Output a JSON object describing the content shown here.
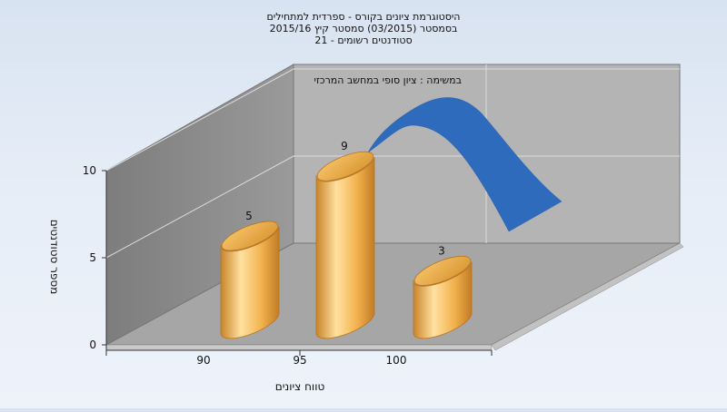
{
  "chart_data": {
    "type": "bar",
    "title_lines": [
      "היסטוגרמת ציונים בקורס - ספרדית למתחילים",
      "בסמסטר  (03/2015)  סמסטר קיץ  2015/16",
      "סטודנטים רשומים - 21"
    ],
    "subtitle": "במשימה : ציון סופי במחשב המרכזי",
    "xlabel": "טווח ציונים",
    "ylabel": "מספר סטודנטים",
    "categories": [
      "90",
      "95",
      "100"
    ],
    "values": [
      5,
      9,
      3
    ],
    "data_labels": [
      "5",
      "9",
      "3"
    ],
    "y_ticks": [
      "0",
      "5",
      "10"
    ],
    "ylim": [
      0,
      10
    ],
    "grid": true,
    "curve": "normal-distribution",
    "colors": {
      "bar_light": "#ffd68a",
      "bar_dark": "#d38f2c",
      "curve": "#2f6bbd",
      "back_wall": "#b3b3b3",
      "side_wall": "#8c8c8c",
      "floor": "#a5a5a5"
    }
  }
}
